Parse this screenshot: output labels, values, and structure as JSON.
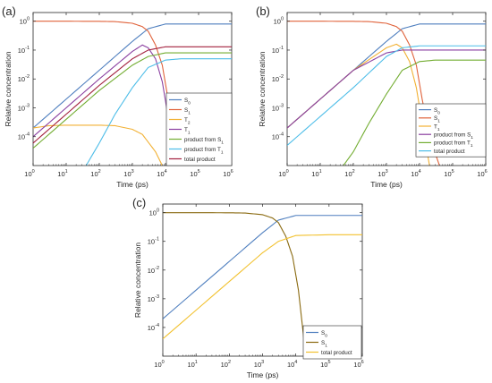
{
  "figure": {
    "panel_labels": [
      "(a)",
      "(b)",
      "(c)"
    ]
  },
  "chart_data": [
    {
      "panel": "(a)",
      "type": "line",
      "xlabel": "Time (ps)",
      "ylabel": "Relative concentration",
      "xscale": "log",
      "yscale": "log",
      "xlim": [
        1,
        1000000
      ],
      "ylim": [
        1e-05,
        2
      ],
      "xticks": [
        1,
        10,
        100,
        1000,
        10000,
        100000,
        1000000
      ],
      "xtick_labels": [
        "10^0",
        "10^1",
        "10^2",
        "10^3",
        "10^4",
        "10^5",
        "10^6"
      ],
      "yticks": [
        0.0001,
        0.001,
        0.01,
        0.1,
        1
      ],
      "ytick_labels": [
        "10^-4",
        "10^-3",
        "10^-2",
        "10^-1",
        "10^0"
      ],
      "legend_position": "bottom-right",
      "grid": false,
      "series": [
        {
          "name": "S_0",
          "color": "#4f7fbf",
          "x": [
            1,
            10,
            100,
            1000,
            3000,
            10000,
            100000,
            1000000
          ],
          "y": [
            0.0002,
            0.002,
            0.02,
            0.2,
            0.55,
            0.8,
            0.8,
            0.8
          ]
        },
        {
          "name": "S_1",
          "color": "#e0623a",
          "x": [
            1,
            10,
            100,
            300,
            1000,
            2000,
            3000,
            5000,
            8000,
            12000,
            20000,
            40000
          ],
          "y": [
            1,
            1,
            0.99,
            0.97,
            0.85,
            0.65,
            0.45,
            0.15,
            0.03,
            0.002,
            0.0001,
            1e-05
          ]
        },
        {
          "name": "T_2",
          "color": "#f2b134",
          "x": [
            1,
            3,
            10,
            100,
            300,
            1000,
            2000,
            5000,
            8000
          ],
          "y": [
            0.0002,
            0.00024,
            0.00025,
            0.00025,
            0.00024,
            0.00018,
            0.00012,
            3e-05,
            1e-05
          ]
        },
        {
          "name": "T_1",
          "color": "#8a3fa0",
          "x": [
            1,
            10,
            100,
            1000,
            2000,
            3000,
            5000,
            8000,
            12000,
            20000
          ],
          "y": [
            0.0001,
            0.001,
            0.01,
            0.09,
            0.15,
            0.12,
            0.05,
            0.008,
            0.0005,
            1e-05
          ]
        },
        {
          "name": "product from S_1",
          "color": "#73ad32",
          "x": [
            1,
            10,
            100,
            1000,
            3000,
            10000,
            100000,
            1000000
          ],
          "y": [
            4e-05,
            0.0004,
            0.004,
            0.03,
            0.06,
            0.08,
            0.08,
            0.08
          ]
        },
        {
          "name": "product from T_1",
          "color": "#4dbde8",
          "x": [
            40,
            100,
            300,
            1000,
            3000,
            10000,
            30000,
            100000,
            1000000
          ],
          "y": [
            1e-05,
            6e-05,
            0.0006,
            0.005,
            0.025,
            0.045,
            0.05,
            0.05,
            0.05
          ]
        },
        {
          "name": "total product",
          "color": "#a3213f",
          "x": [
            1,
            10,
            100,
            1000,
            3000,
            10000,
            100000,
            1000000
          ],
          "y": [
            6e-05,
            0.0006,
            0.006,
            0.05,
            0.1,
            0.13,
            0.13,
            0.13
          ]
        }
      ]
    },
    {
      "panel": "(b)",
      "type": "line",
      "xlabel": "Time (ps)",
      "ylabel": "Relative concentration",
      "xscale": "log",
      "yscale": "log",
      "xlim": [
        1,
        1000000
      ],
      "ylim": [
        1e-05,
        2
      ],
      "xticks": [
        1,
        10,
        100,
        1000,
        10000,
        100000,
        1000000
      ],
      "xtick_labels": [
        "10^0",
        "10^1",
        "10^2",
        "10^3",
        "10^4",
        "10^5",
        "10^6"
      ],
      "yticks": [
        0.0001,
        0.001,
        0.01,
        0.1,
        1
      ],
      "ytick_labels": [
        "10^-4",
        "10^-3",
        "10^-2",
        "10^-1",
        "10^0"
      ],
      "legend_position": "bottom-right",
      "grid": false,
      "series": [
        {
          "name": "S_0",
          "color": "#4f7fbf",
          "x": [
            1,
            10,
            100,
            1000,
            3000,
            10000,
            100000,
            1000000
          ],
          "y": [
            0.0002,
            0.002,
            0.02,
            0.2,
            0.55,
            0.8,
            0.8,
            0.8
          ]
        },
        {
          "name": "S_1",
          "color": "#e0623a",
          "x": [
            1,
            10,
            100,
            300,
            1000,
            2000,
            3000,
            5000,
            8000,
            12000,
            20000,
            40000
          ],
          "y": [
            1,
            1,
            0.99,
            0.97,
            0.85,
            0.65,
            0.45,
            0.15,
            0.03,
            0.002,
            0.0001,
            1e-05
          ]
        },
        {
          "name": "T_1",
          "color": "#f2b134",
          "x": [
            1,
            10,
            100,
            1000,
            2000,
            3000,
            5000,
            8000,
            12000,
            20000
          ],
          "y": [
            0.0002,
            0.002,
            0.02,
            0.12,
            0.16,
            0.12,
            0.04,
            0.005,
            0.0003,
            1e-05
          ]
        },
        {
          "name": "product from S_1",
          "color": "#8a3fa0",
          "x": [
            1,
            10,
            100,
            1000,
            3000,
            10000,
            100000,
            1000000
          ],
          "y": [
            0.0002,
            0.002,
            0.02,
            0.08,
            0.1,
            0.1,
            0.1,
            0.1
          ]
        },
        {
          "name": "product from T_1",
          "color": "#73ad32",
          "x": [
            50,
            100,
            300,
            1000,
            3000,
            10000,
            30000,
            100000,
            1000000
          ],
          "y": [
            1e-05,
            3e-05,
            0.0003,
            0.003,
            0.02,
            0.04,
            0.045,
            0.045,
            0.045
          ]
        },
        {
          "name": "total product",
          "color": "#4dbde8",
          "x": [
            1,
            10,
            100,
            1000,
            3000,
            10000,
            100000,
            1000000
          ],
          "y": [
            5e-05,
            0.0005,
            0.005,
            0.06,
            0.12,
            0.14,
            0.14,
            0.14
          ]
        }
      ]
    },
    {
      "panel": "(c)",
      "type": "line",
      "xlabel": "Time (ps)",
      "ylabel": "Relative concentration",
      "xscale": "log",
      "yscale": "log",
      "xlim": [
        1,
        1000000
      ],
      "ylim": [
        1e-05,
        2
      ],
      "xticks": [
        1,
        10,
        100,
        1000,
        10000,
        100000,
        1000000
      ],
      "xtick_labels": [
        "10^0",
        "10^1",
        "10^2",
        "10^3",
        "10^4",
        "10^5",
        "10^6"
      ],
      "yticks": [
        0.0001,
        0.001,
        0.01,
        0.1,
        1
      ],
      "ytick_labels": [
        "10^-4",
        "10^-3",
        "10^-2",
        "10^-1",
        "10^0"
      ],
      "legend_position": "bottom-right",
      "grid": false,
      "series": [
        {
          "name": "S_0",
          "color": "#4f7fbf",
          "x": [
            1,
            10,
            100,
            1000,
            3000,
            10000,
            100000,
            1000000
          ],
          "y": [
            0.0002,
            0.002,
            0.02,
            0.2,
            0.55,
            0.8,
            0.8,
            0.8
          ]
        },
        {
          "name": "S_1",
          "color": "#8a6a10",
          "x": [
            1,
            10,
            100,
            300,
            1000,
            2000,
            3000,
            5000,
            8000,
            12000,
            16000,
            20000
          ],
          "y": [
            1,
            1,
            0.99,
            0.97,
            0.85,
            0.65,
            0.45,
            0.15,
            0.03,
            0.002,
            0.0001,
            1e-05
          ]
        },
        {
          "name": "total product",
          "color": "#f2c12e",
          "x": [
            1,
            10,
            100,
            1000,
            3000,
            10000,
            100000,
            1000000
          ],
          "y": [
            4e-05,
            0.0004,
            0.004,
            0.04,
            0.1,
            0.16,
            0.17,
            0.17
          ]
        }
      ]
    }
  ]
}
